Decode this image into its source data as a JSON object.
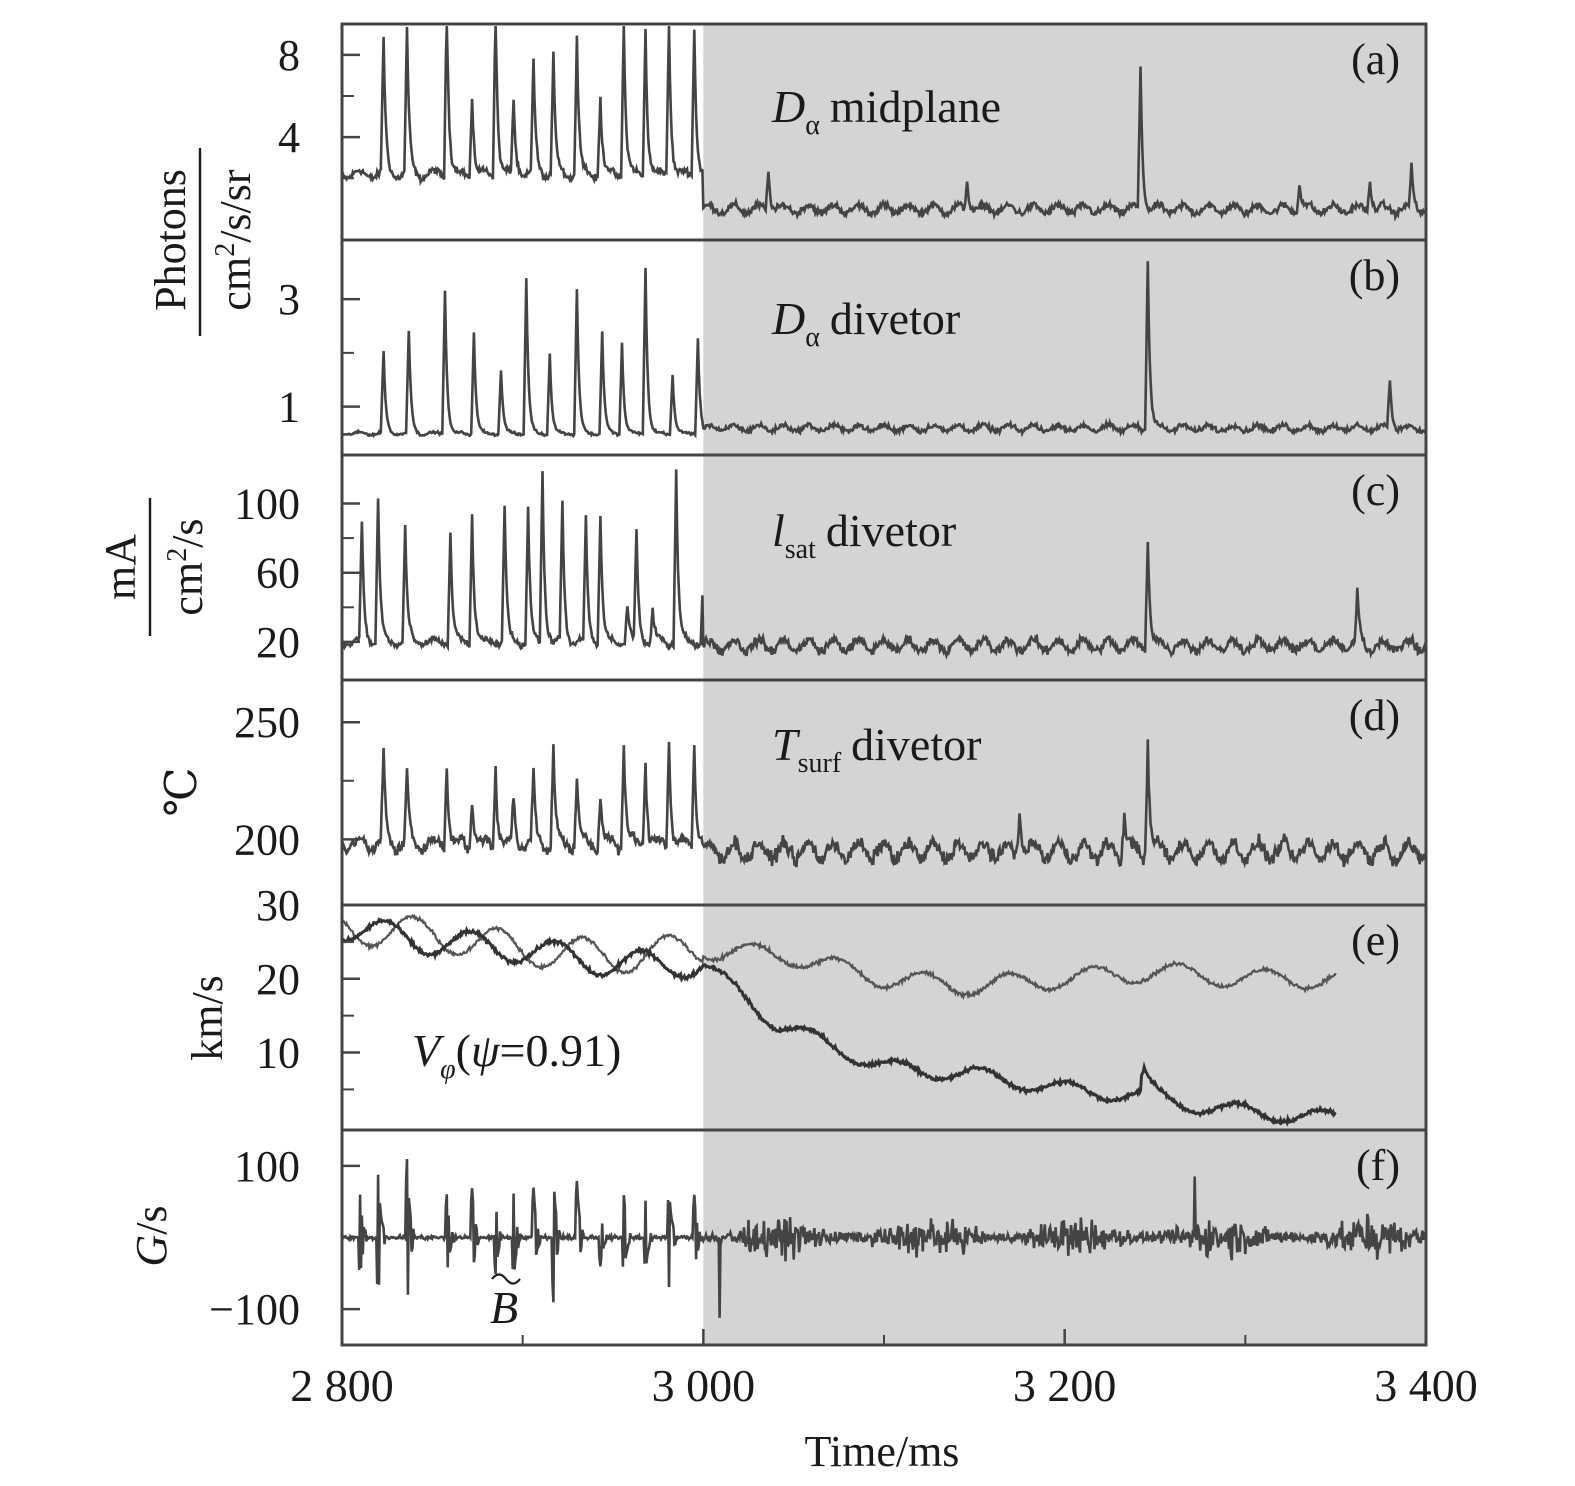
{
  "chart_data": {
    "type": "line",
    "xlabel": "Time/ms",
    "xlim": [
      2800,
      3400
    ],
    "x_ticks": [
      2800,
      3000,
      3200,
      3400
    ],
    "x_tick_labels": [
      "2 800",
      "3 000",
      "3 200",
      "3 400"
    ],
    "shaded_region_x": [
      3000,
      3400
    ],
    "shade_color": "#d4d4d4",
    "trace_color": "#444444",
    "panels": [
      {
        "id": "a",
        "letter": "(a)",
        "label_main": "D",
        "label_sub": "α",
        "label_rest": "midplane",
        "ylim": [
          -1,
          9.5
        ],
        "y_ticks": [
          8,
          4
        ],
        "y_minor_ticks": [
          6,
          2
        ],
        "series": [
          {
            "baseline_pre": 2.2,
            "baseline_post": 0.5,
            "noise_pre": 0.25,
            "noise_post": 0.25,
            "spike_times": [
              2823,
              2836,
              2858,
              2872,
              2885,
              2895,
              2906,
              2917,
              2930,
              2943,
              2956,
              2968,
              2981,
              2995
            ],
            "spike_heights": [
              6.5,
              7.0,
              8.6,
              3.8,
              8.4,
              3.6,
              5.5,
              6.0,
              6.8,
              3.8,
              7.5,
              7.2,
              7.5,
              7.3
            ],
            "post_spike_times": [
              3036,
              3146,
              3242,
              3330,
              3369,
              3392
            ],
            "post_spike_heights": [
              2.0,
              1.5,
              6.8,
              1.4,
              1.5,
              2.0
            ]
          }
        ]
      },
      {
        "id": "b",
        "letter": "(b)",
        "label_main": "D",
        "label_sub": "α",
        "label_rest": "divetor",
        "ylim": [
          0.1,
          4.1
        ],
        "y_ticks": [
          3,
          1
        ],
        "y_minor_ticks": [
          2
        ],
        "series": [
          {
            "baseline_pre": 0.5,
            "baseline_post": 0.6,
            "noise_pre": 0.03,
            "noise_post": 0.07,
            "spike_times": [
              2823,
              2837,
              2857,
              2873,
              2888,
              2902,
              2915,
              2930,
              2944,
              2955,
              2968,
              2983,
              2997
            ],
            "spike_heights": [
              1.5,
              1.9,
              2.7,
              1.9,
              1.2,
              2.9,
              1.5,
              2.7,
              1.9,
              1.7,
              3.1,
              1.1,
              1.8
            ],
            "post_spike_times": [
              3246,
              3380
            ],
            "post_spike_heights": [
              3.2,
              0.9
            ]
          }
        ]
      },
      {
        "id": "c",
        "letter": "(c)",
        "label_main": "l",
        "label_sub": "sat",
        "label_rest": "divetor",
        "ylim": [
          -2,
          128
        ],
        "y_ticks": [
          100,
          60,
          20
        ],
        "y_minor_ticks": [
          80,
          40
        ],
        "series": [
          {
            "baseline_pre": 20,
            "baseline_post": 18,
            "noise_pre": 2.5,
            "noise_post": 4,
            "spike_times": [
              2811,
              2820,
              2835,
              2860,
              2872,
              2890,
              2903,
              2911,
              2922,
              2935,
              2943,
              2958,
              2963,
              2972,
              2985,
              3000
            ],
            "spike_heights": [
              68,
              84,
              66,
              64,
              75,
              78,
              78,
              100,
              80,
              70,
              74,
              22,
              63,
              18,
              100,
              40
            ],
            "post_spike_times": [
              3246,
              3362
            ],
            "post_spike_heights": [
              65,
              30
            ]
          }
        ]
      },
      {
        "id": "d",
        "letter": "(d)",
        "label_main": "T",
        "label_sub": "surf",
        "label_rest": "divetor",
        "ylim": [
          172,
          268
        ],
        "y_ticks": [
          250,
          200
        ],
        "y_minor_ticks": [
          225
        ],
        "series": [
          {
            "baseline_pre": 198,
            "baseline_post": 195,
            "noise_pre": 3.5,
            "noise_post": 4.5,
            "spike_times": [
              2823,
              2836,
              2858,
              2872,
              2885,
              2895,
              2906,
              2917,
              2930,
              2943,
              2956,
              2968,
              2981,
              2995
            ],
            "spike_heights": [
              38,
              30,
              36,
              20,
              35,
              20,
              30,
              42,
              28,
              22,
              44,
              36,
              46,
              44
            ],
            "post_spike_times": [
              3175,
              3233,
              3246
            ],
            "post_spike_heights": [
              20,
              18,
              48
            ]
          }
        ]
      },
      {
        "id": "e",
        "letter": "(e)",
        "label_main": "V",
        "label_sub": "φ",
        "label_rest": "(ψ=0.91)",
        "ylim": [
          -0.5,
          30
        ],
        "y_ticks": [
          30,
          20,
          10
        ],
        "y_minor_ticks": [
          25,
          15,
          5
        ],
        "series": [
          {
            "name_hidden": "upper trace",
            "x_end": 3350,
            "x": [
              2800,
              2850,
              2900,
              2950,
              3000,
              3050,
              3100,
              3150,
              3200,
              3250,
              3300,
              3350
            ],
            "y": [
              27,
              26,
              24,
              23,
              24,
              23,
              20,
              19,
              20,
              21,
              20,
              20
            ],
            "noise": 1.6,
            "stroke": "#555555"
          },
          {
            "name_hidden": "lower trace",
            "x_end": 3350,
            "x": [
              2800,
              2850,
              2900,
              2950,
              3000,
              3020,
              3040,
              3060,
              3080,
              3100,
              3150,
              3200,
              3250,
              3280,
              3300,
              3350
            ],
            "y": [
              27,
              25,
              24,
              22,
              22,
              18,
              14,
              12,
              10,
              8,
              7,
              5,
              4,
              2.5,
              2,
              1
            ],
            "noise": 1.3,
            "stroke": "#333333",
            "bump_x": [
              3244
            ],
            "bump_h": [
              3
            ]
          }
        ]
      },
      {
        "id": "f",
        "letter": "(f)",
        "label_main": "B",
        "label_tilde": true,
        "ylim": [
          -150,
          150
        ],
        "y_ticks": [
          100,
          -100
        ],
        "y_minor_ticks": [
          0
        ],
        "y_tick_labels": [
          "100",
          "−100"
        ],
        "series": [
          {
            "baseline_pre": 0,
            "baseline_post": 0,
            "noise_pre": 4,
            "noise_post": 25,
            "burst_times": [
              2810,
              2820,
              2836,
              2858,
              2872,
              2885,
              2895,
              2906,
              2917,
              2930,
              2943,
              2956,
              2968,
              2981,
              2995
            ],
            "burst_heights": [
              60,
              90,
              110,
              60,
              70,
              50,
              60,
              70,
              90,
              80,
              40,
              60,
              50,
              70,
              60
            ]
          }
        ]
      }
    ],
    "ylabels": [
      {
        "num": "Photons",
        "den_base": "cm",
        "den_sup": "2",
        "den_rest": "/s/sr"
      },
      {
        "num": "mA",
        "den_base": "cm",
        "den_sup": "2",
        "den_rest": "/s"
      },
      {
        "text": "℃"
      },
      {
        "text": "km/s"
      },
      {
        "text_italic": "G",
        "text_rest": "/s"
      }
    ]
  }
}
